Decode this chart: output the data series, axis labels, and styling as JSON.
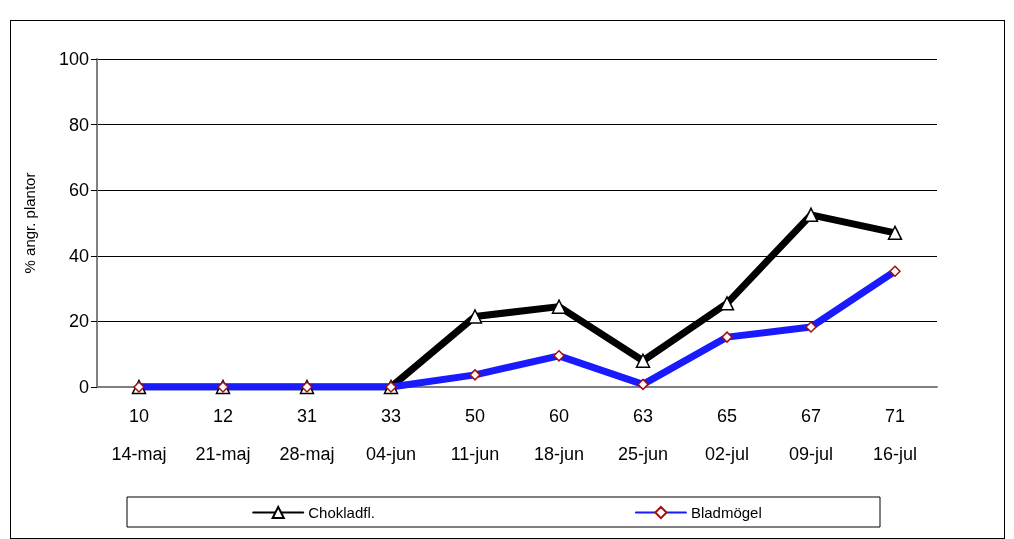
{
  "chart_data": {
    "type": "line",
    "ylabel": "% angr. plantor",
    "categories": [
      "10\n14-maj",
      "12\n21-maj",
      "31\n28-maj",
      "33\n04-jun",
      "50\n11-jun",
      "60\n18-jun",
      "63\n25-jun",
      "65\n02-jul",
      "67\n09-jul",
      "71\n16-jul"
    ],
    "series": [
      {
        "name": "Chokladfl.",
        "color": "#000000",
        "marker": "triangle",
        "values": [
          0,
          0,
          0,
          0,
          21.5,
          24.5,
          8,
          25.5,
          52.5,
          47
        ]
      },
      {
        "name": "Bladmögel",
        "color": "#1a1aff",
        "marker": "diamond",
        "values": [
          0,
          0,
          0,
          0,
          3.7,
          9.5,
          0.8,
          15.2,
          18.3,
          35.3
        ]
      }
    ],
    "ylim": [
      0,
      100
    ],
    "yticks": [
      0,
      20,
      40,
      60,
      80,
      100
    ],
    "grid": "y",
    "legend": "bottom",
    "line_style": "solid"
  }
}
